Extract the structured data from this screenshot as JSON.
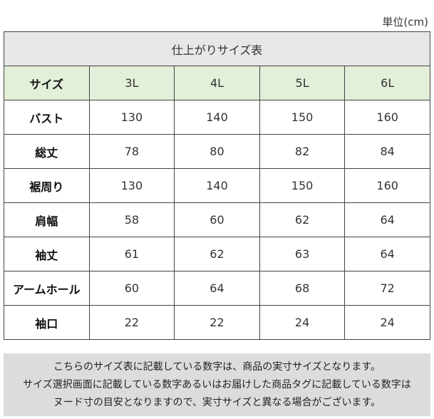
{
  "unit": "単位(cm)",
  "table": {
    "title": "仕上がりサイズ表",
    "header": [
      "サイズ",
      "3L",
      "4L",
      "5L",
      "6L"
    ],
    "rows": [
      [
        "バスト",
        130,
        140,
        150,
        160
      ],
      [
        "総丈",
        78,
        80,
        82,
        84
      ],
      [
        "裾周り",
        130,
        140,
        150,
        160
      ],
      [
        "肩幅",
        58,
        60,
        62,
        64
      ],
      [
        "袖丈",
        61,
        62,
        63,
        64
      ],
      [
        "アームホール",
        60,
        64,
        68,
        72
      ],
      [
        "袖口",
        22,
        22,
        24,
        24
      ]
    ]
  },
  "note": [
    "こちらのサイズ表に記載している数字は、商品の実寸サイズとなります。",
    "サイズ選択画面に記載している数字あるいはお届けした商品タグに記載している数字は",
    "ヌード寸の目安となりますので、実寸サイズと異なる場合がございます。"
  ]
}
